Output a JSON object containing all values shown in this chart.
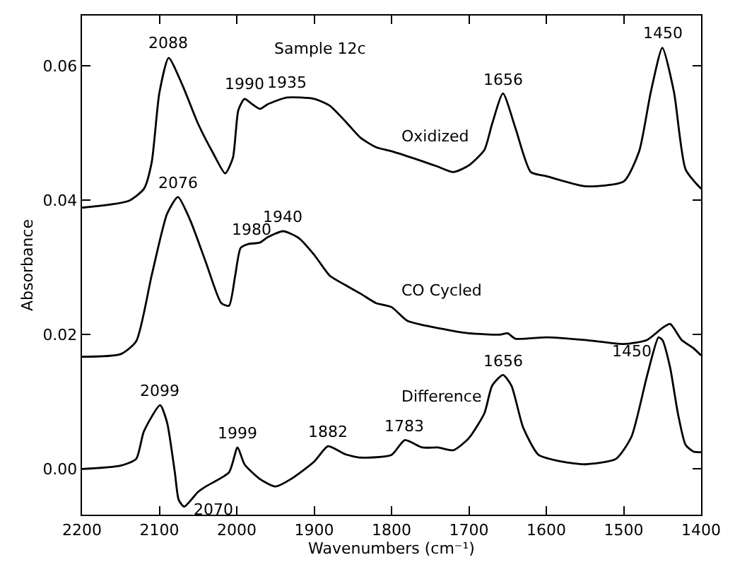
{
  "chart_data": {
    "type": "line",
    "title": "Sample 12c",
    "xlabel": "Wavenumbers (cm⁻¹)",
    "ylabel": "Absorbance",
    "xlim": [
      2200,
      1400
    ],
    "xticks": [
      2200,
      2100,
      2000,
      1900,
      1800,
      1700,
      1600,
      1500,
      1400
    ],
    "ylim": [
      -0.0068,
      0.0675
    ],
    "yticks": [
      {
        "value": 0,
        "label": "0.00"
      },
      {
        "value": 0.02,
        "label": "0.02"
      },
      {
        "value": 0.04,
        "label": "0.04"
      },
      {
        "value": 0.06,
        "label": "0.06"
      }
    ],
    "legend": false,
    "marker": "none",
    "line_style": "solid",
    "series": [
      {
        "name": "Oxidized",
        "color": "#000000",
        "x": [
          2200,
          2140,
          2120,
          2110,
          2100,
          2088,
          2070,
          2050,
          2030,
          2015,
          2005,
          1998,
          1990,
          1980,
          1970,
          1960,
          1935,
          1900,
          1880,
          1860,
          1840,
          1820,
          1800,
          1760,
          1740,
          1720,
          1700,
          1680,
          1670,
          1656,
          1640,
          1620,
          1600,
          1550,
          1500,
          1480,
          1465,
          1450,
          1435,
          1420,
          1400
        ],
        "values": [
          0.0389,
          0.0399,
          0.0417,
          0.0456,
          0.056,
          0.0612,
          0.0571,
          0.0514,
          0.0469,
          0.044,
          0.0463,
          0.0534,
          0.0551,
          0.0543,
          0.0536,
          0.0543,
          0.0553,
          0.0551,
          0.0541,
          0.0518,
          0.0493,
          0.0479,
          0.0473,
          0.0458,
          0.045,
          0.0442,
          0.0452,
          0.0475,
          0.0514,
          0.0559,
          0.0508,
          0.0442,
          0.0436,
          0.0421,
          0.0428,
          0.0473,
          0.0561,
          0.0627,
          0.0561,
          0.0446,
          0.0417
        ]
      },
      {
        "name": "CO Cycled",
        "color": "#000000",
        "x": [
          2200,
          2150,
          2130,
          2110,
          2090,
          2076,
          2060,
          2040,
          2020,
          2010,
          2002,
          1995,
          1985,
          1970,
          1960,
          1940,
          1920,
          1900,
          1880,
          1860,
          1840,
          1820,
          1800,
          1780,
          1750,
          1700,
          1660,
          1650,
          1640,
          1600,
          1550,
          1500,
          1470,
          1450,
          1440,
          1425,
          1410,
          1400
        ],
        "values": [
          0.0167,
          0.0171,
          0.019,
          0.0288,
          0.038,
          0.0405,
          0.037,
          0.0308,
          0.0247,
          0.0243,
          0.0288,
          0.0329,
          0.0335,
          0.0337,
          0.0345,
          0.0354,
          0.0344,
          0.0319,
          0.0288,
          0.0274,
          0.0261,
          0.0247,
          0.0241,
          0.0221,
          0.0212,
          0.0202,
          0.02,
          0.0202,
          0.0194,
          0.0196,
          0.0192,
          0.0186,
          0.0192,
          0.021,
          0.0216,
          0.0192,
          0.018,
          0.0169
        ]
      },
      {
        "name": "Difference",
        "color": "#000000",
        "x": [
          2200,
          2150,
          2130,
          2120,
          2099,
          2090,
          2080,
          2075,
          2068,
          2050,
          2040,
          2010,
          1999,
          1990,
          1970,
          1950,
          1930,
          1900,
          1882,
          1860,
          1840,
          1800,
          1783,
          1760,
          1740,
          1720,
          1700,
          1680,
          1670,
          1656,
          1645,
          1630,
          1610,
          1580,
          1550,
          1510,
          1490,
          1470,
          1455,
          1450,
          1440,
          1430,
          1420,
          1410,
          1400
        ],
        "values": [
          0.0,
          0.0005,
          0.0015,
          0.0056,
          0.0095,
          0.0069,
          -0.0005,
          -0.0046,
          -0.0056,
          -0.0034,
          -0.0026,
          -0.0005,
          0.0032,
          0.0007,
          -0.0015,
          -0.0026,
          -0.0015,
          0.0011,
          0.0034,
          0.0022,
          0.0017,
          0.0021,
          0.0043,
          0.0032,
          0.0032,
          0.0028,
          0.0046,
          0.0083,
          0.0124,
          0.014,
          0.0124,
          0.0062,
          0.0021,
          0.0011,
          0.0007,
          0.0015,
          0.0048,
          0.0138,
          0.0196,
          0.0192,
          0.0151,
          0.0083,
          0.0036,
          0.0026,
          0.0025
        ]
      }
    ],
    "annotations": [
      {
        "text": "2088",
        "x": 2088,
        "y": 0.0612
      },
      {
        "text": "1990",
        "x": 1990,
        "y": 0.0551
      },
      {
        "text": "1935",
        "x": 1935,
        "y": 0.0553
      },
      {
        "text": "1656",
        "x": 1656,
        "y": 0.0559
      },
      {
        "text": "1450",
        "x": 1450,
        "y": 0.0627
      },
      {
        "text": "2076",
        "x": 2076,
        "y": 0.0405
      },
      {
        "text": "1980",
        "x": 1980,
        "y": 0.0335
      },
      {
        "text": "1940",
        "x": 1940,
        "y": 0.0354
      },
      {
        "text": "2099",
        "x": 2099,
        "y": 0.0095
      },
      {
        "text": "2070",
        "x": 2070,
        "y": -0.0056
      },
      {
        "text": "1999",
        "x": 1999,
        "y": 0.0032
      },
      {
        "text": "1882",
        "x": 1882,
        "y": 0.0034
      },
      {
        "text": "1783",
        "x": 1783,
        "y": 0.0043
      },
      {
        "text": "1656",
        "x": 1656,
        "y": 0.014
      },
      {
        "text": "1450",
        "x": 1450,
        "y": 0.0196
      }
    ]
  }
}
